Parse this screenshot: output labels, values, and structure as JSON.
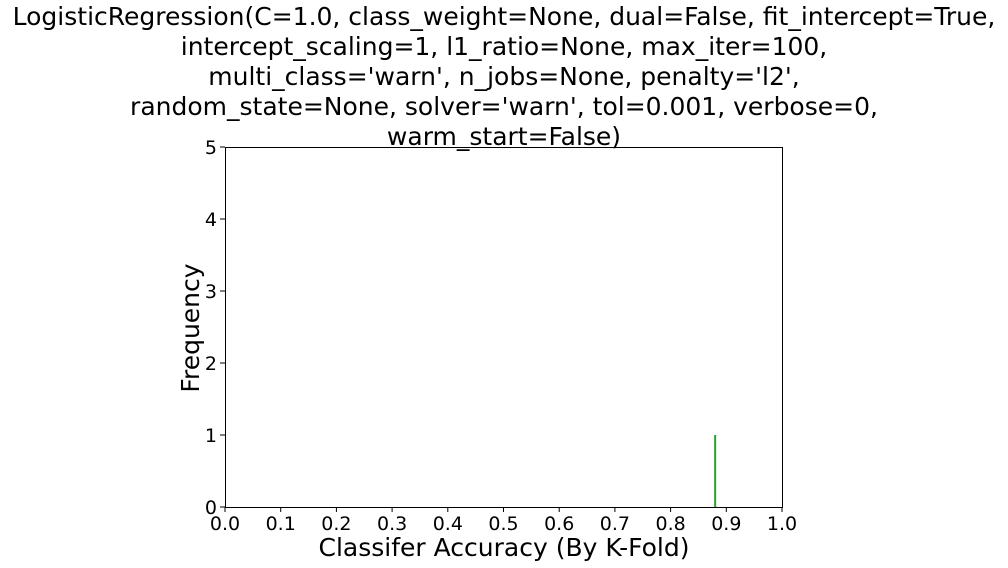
{
  "chart_data": {
    "type": "bar",
    "title_lines": [
      "LogisticRegression(C=1.0, class_weight=None, dual=False, fit_intercept=True,",
      "intercept_scaling=1, l1_ratio=None, max_iter=100,",
      "multi_class='warn', n_jobs=None, penalty='l2',",
      "random_state=None, solver='warn', tol=0.001, verbose=0,",
      "warm_start=False)"
    ],
    "xlabel": "Classifer Accuracy (By K-Fold)",
    "ylabel": "Frequency",
    "xlim": [
      0.0,
      1.0
    ],
    "ylim": [
      0,
      5
    ],
    "x_ticks": [
      "0.0",
      "0.1",
      "0.2",
      "0.3",
      "0.4",
      "0.5",
      "0.6",
      "0.7",
      "0.8",
      "0.9",
      "1.0"
    ],
    "y_ticks": [
      "0",
      "1",
      "2",
      "3",
      "4",
      "5"
    ],
    "grid": false,
    "series": [
      {
        "color": "#2ca02c",
        "points": [
          {
            "x": 0.88,
            "y": 1
          }
        ]
      }
    ]
  }
}
